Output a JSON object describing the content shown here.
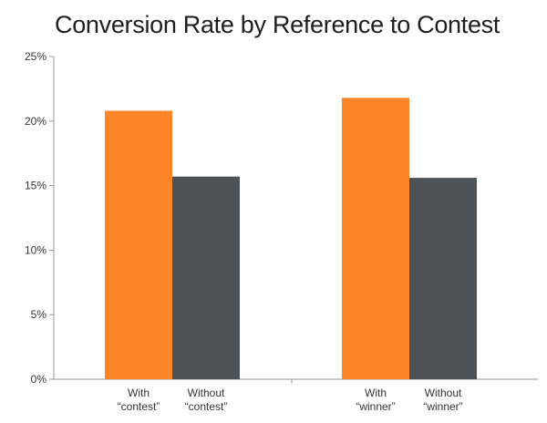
{
  "chart_data": {
    "type": "bar",
    "title": "Conversion Rate by Reference to Contest",
    "xlabel": "",
    "ylabel": "",
    "ylim": [
      0,
      25
    ],
    "yticks": [
      "0%",
      "5%",
      "10%",
      "15%",
      "20%",
      "25%"
    ],
    "ytick_values": [
      0,
      5,
      10,
      15,
      20,
      25
    ],
    "grid": false,
    "legend": "none",
    "groups": [
      {
        "bars": [
          {
            "label_lines": [
              "With",
              "“contest”"
            ],
            "value": 20.8,
            "color": "#fd8528"
          },
          {
            "label_lines": [
              "Without",
              "“contest”"
            ],
            "value": 15.7,
            "color": "#4d5257"
          }
        ]
      },
      {
        "bars": [
          {
            "label_lines": [
              "With",
              "“winner”"
            ],
            "value": 21.8,
            "color": "#fd8528"
          },
          {
            "label_lines": [
              "Without",
              "“winner”"
            ],
            "value": 15.6,
            "color": "#4d5257"
          }
        ]
      }
    ]
  }
}
